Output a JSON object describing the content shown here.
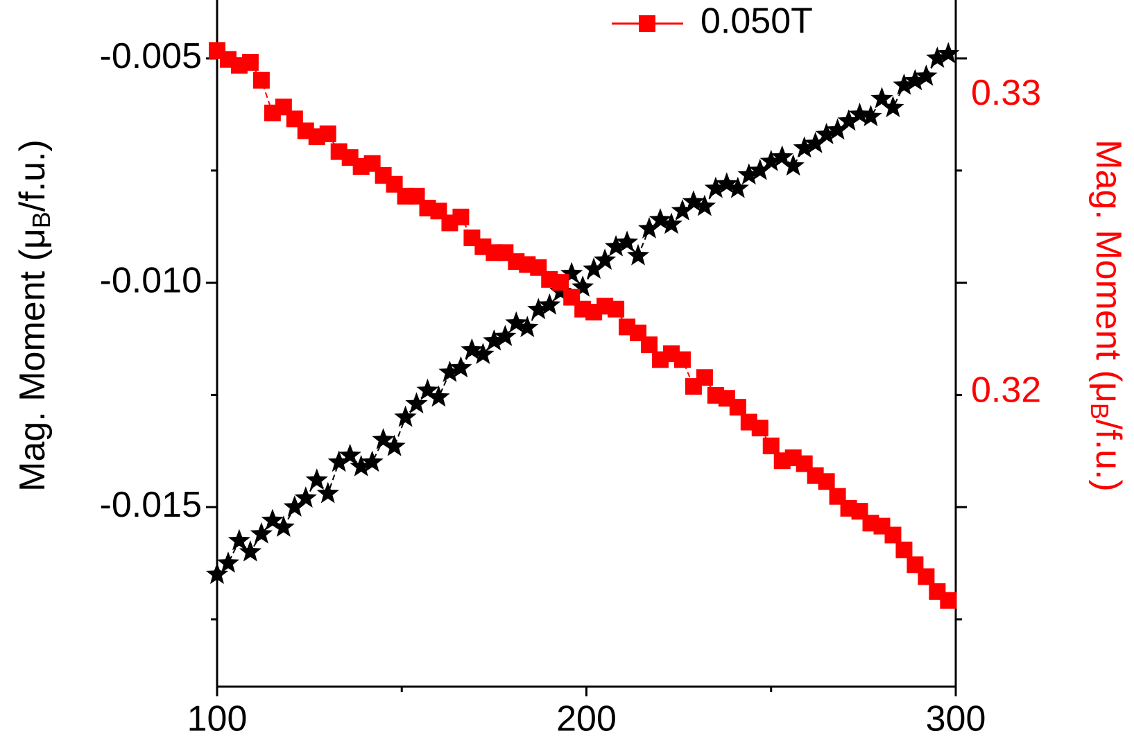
{
  "chart_data": {
    "type": "scatter",
    "x": [
      100,
      103,
      106,
      109,
      112,
      115,
      118,
      121,
      124,
      127,
      130,
      133,
      136,
      139,
      142,
      145,
      148,
      151,
      154,
      157,
      160,
      163,
      166,
      169,
      172,
      175,
      178,
      181,
      184,
      187,
      190,
      193,
      196,
      199,
      202,
      205,
      208,
      211,
      214,
      217,
      220,
      223,
      226,
      229,
      232,
      235,
      238,
      241,
      244,
      247,
      250,
      253,
      256,
      259,
      262,
      265,
      268,
      271,
      274,
      277,
      280,
      283,
      286,
      289,
      292,
      295,
      298
    ],
    "series": [
      {
        "color": "#000000",
        "marker": "star",
        "axis": "y",
        "values": [
          -0.0165,
          -0.01625,
          -0.01575,
          -0.016,
          -0.0156,
          -0.0153,
          -0.01545,
          -0.015,
          -0.0148,
          -0.0144,
          -0.0147,
          -0.014,
          -0.01385,
          -0.0141,
          -0.014,
          -0.0135,
          -0.01365,
          -0.013,
          -0.0127,
          -0.0124,
          -0.01255,
          -0.012,
          -0.0119,
          -0.0115,
          -0.0116,
          -0.0113,
          -0.0112,
          -0.0109,
          -0.011,
          -0.0106,
          -0.0105,
          -0.0102,
          -0.0098,
          -0.0101,
          -0.0097,
          -0.0095,
          -0.0092,
          -0.0091,
          -0.0094,
          -0.0088,
          -0.0086,
          -0.0087,
          -0.0084,
          -0.0082,
          -0.0083,
          -0.0079,
          -0.0078,
          -0.0079,
          -0.0076,
          -0.0075,
          -0.0073,
          -0.0072,
          -0.0074,
          -0.007,
          -0.0069,
          -0.0067,
          -0.0066,
          -0.0064,
          -0.00625,
          -0.0063,
          -0.0059,
          -0.0061,
          -0.0056,
          -0.0055,
          -0.0054,
          -0.005,
          -0.0049
        ]
      },
      {
        "name": "0.050T",
        "color": "#ff0000",
        "marker": "square",
        "axis": "y2",
        "values": [
          0.3315,
          0.3312,
          0.331,
          0.3311,
          0.3305,
          0.3294,
          0.3296,
          0.3292,
          0.3288,
          0.3286,
          0.3287,
          0.3281,
          0.3279,
          0.3276,
          0.3277,
          0.3273,
          0.327,
          0.3266,
          0.3266,
          0.3262,
          0.3261,
          0.3257,
          0.3259,
          0.3252,
          0.3249,
          0.3247,
          0.3247,
          0.3244,
          0.3243,
          0.3242,
          0.3238,
          0.3237,
          0.3232,
          0.3228,
          0.3227,
          0.3229,
          0.3228,
          0.3222,
          0.322,
          0.3216,
          0.3211,
          0.3213,
          0.3211,
          0.3202,
          0.3205,
          0.3199,
          0.3198,
          0.3195,
          0.319,
          0.3188,
          0.3182,
          0.3177,
          0.3178,
          0.3176,
          0.3172,
          0.317,
          0.3165,
          0.3161,
          0.316,
          0.3156,
          0.3155,
          0.3152,
          0.3147,
          0.3142,
          0.3138,
          0.3133,
          0.313
        ]
      }
    ],
    "xlim": [
      100,
      300
    ],
    "xticks": [
      100,
      200,
      300
    ],
    "xminorticks": [
      150,
      250
    ],
    "ylim": [
      -0.019,
      -0.0037
    ],
    "yticks": [
      -0.005,
      {
        "value": -0.01,
        "label": "-0.010"
      },
      -0.015
    ],
    "yminorticks": [
      -0.0075,
      -0.0125,
      -0.0175
    ],
    "y2lim": [
      0.3101,
      0.3332
    ],
    "y2ticks": [
      0.33,
      0.32
    ],
    "ylabel": {
      "prefix": "Mag. Moment (μ",
      "sub": "B",
      "suffix": "/f.u.)"
    },
    "y2label": {
      "prefix": "Mag. Moment (μ",
      "sub": "B",
      "suffix": "/f.u.)"
    },
    "y2color": "#ff0000"
  }
}
